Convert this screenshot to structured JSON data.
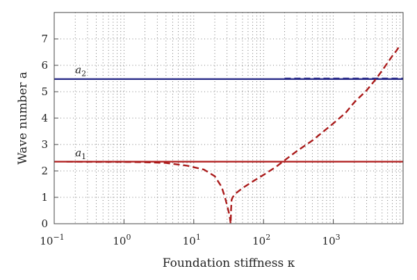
{
  "chart_data": {
    "type": "line",
    "title": "",
    "xlabel": "Foundation stiffness κ",
    "ylabel": "Wave number a",
    "xscale": "log",
    "xlim": [
      0.1,
      10000
    ],
    "ylim": [
      0,
      8
    ],
    "grid": true,
    "legend": "none",
    "x_ticks": [
      {
        "value": 0.1,
        "base": "10",
        "exp": "−1"
      },
      {
        "value": 1,
        "base": "10",
        "exp": "0"
      },
      {
        "value": 10,
        "base": "10",
        "exp": "1"
      },
      {
        "value": 100,
        "base": "10",
        "exp": "2"
      },
      {
        "value": 1000,
        "base": "10",
        "exp": "3"
      }
    ],
    "y_ticks": [
      {
        "value": 0,
        "label": "0"
      },
      {
        "value": 1,
        "label": "1"
      },
      {
        "value": 2,
        "label": "2"
      },
      {
        "value": 3,
        "label": "3"
      },
      {
        "value": 4,
        "label": "4"
      },
      {
        "value": 5,
        "label": "5"
      },
      {
        "value": 6,
        "label": "6"
      },
      {
        "value": 7,
        "label": "7"
      }
    ],
    "series": [
      {
        "name": "a2",
        "label_main": "a",
        "label_sub": "2",
        "label_x": 0.2,
        "label_y": 5.7,
        "color": "#2b2d8a",
        "style": "solid",
        "x": [
          0.1,
          10000
        ],
        "y": [
          5.48,
          5.48
        ]
      },
      {
        "color": "#2b2d8a",
        "style": "dashed",
        "x": [
          200,
          10000
        ],
        "y": [
          5.5,
          5.5
        ]
      },
      {
        "name": "a1",
        "label_main": "a",
        "label_sub": "1",
        "label_x": 0.2,
        "label_y": 2.55,
        "color": "#b22222",
        "style": "solid",
        "x": [
          0.1,
          10000
        ],
        "y": [
          2.35,
          2.35
        ]
      },
      {
        "color": "#aa1a1a",
        "style": "dashed",
        "x": [
          0.15,
          0.5,
          1,
          2,
          4,
          8,
          14,
          20,
          25,
          28,
          30,
          32,
          33,
          33.8,
          34.3,
          34.8,
          36,
          40,
          50,
          70,
          100,
          150,
          200,
          300,
          500,
          1000,
          1500,
          2000,
          3000,
          4000,
          5000,
          6000,
          7000,
          8000,
          9000
        ],
        "y": [
          2.35,
          2.34,
          2.34,
          2.33,
          2.3,
          2.2,
          2.05,
          1.8,
          1.4,
          1.0,
          0.7,
          0.4,
          0.2,
          0.0,
          0.55,
          0.9,
          1.0,
          1.15,
          1.35,
          1.6,
          1.85,
          2.15,
          2.4,
          2.75,
          3.15,
          3.8,
          4.2,
          4.6,
          5.05,
          5.45,
          5.8,
          6.1,
          6.35,
          6.55,
          6.75
        ]
      }
    ]
  }
}
